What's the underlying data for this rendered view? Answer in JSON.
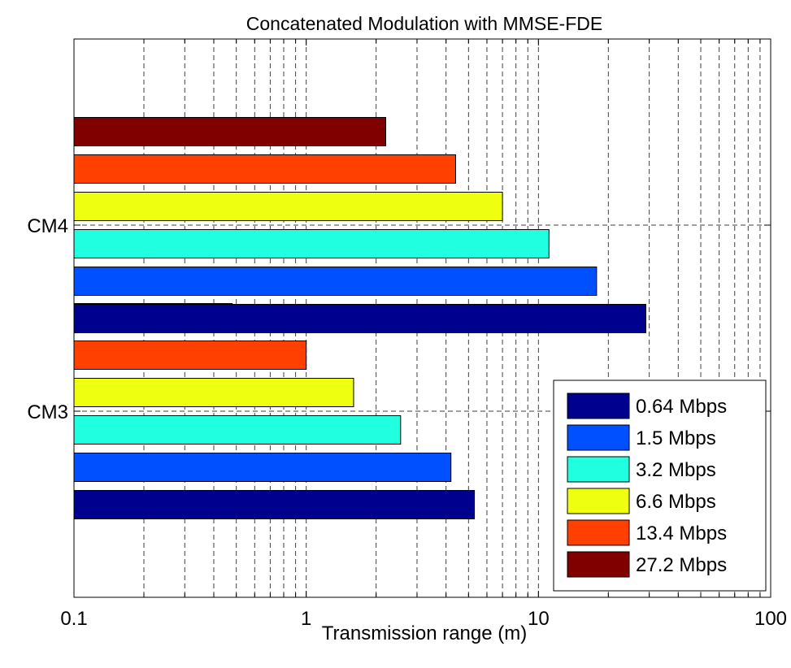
{
  "chart_data": {
    "type": "bar",
    "orientation": "horizontal",
    "title": "Concatenated Modulation with MMSE-FDE",
    "xlabel": "Transmission range (m)",
    "ylabel": "",
    "xscale": "log",
    "xlim": [
      0.1,
      100
    ],
    "xticks": [
      "0.1",
      "1",
      "10",
      "100"
    ],
    "grid": true,
    "legend_position": "bottom-right",
    "categories": [
      "CM3",
      "CM4"
    ],
    "series": [
      {
        "name": "0.64 Mbps",
        "color": "#00008f",
        "values": [
          5.3,
          29
        ]
      },
      {
        "name": "1.5 Mbps",
        "color": "#0050ff",
        "values": [
          4.2,
          17.8
        ]
      },
      {
        "name": "3.2 Mbps",
        "color": "#20ffdf",
        "values": [
          2.55,
          11.1
        ]
      },
      {
        "name": "6.6 Mbps",
        "color": "#efff10",
        "values": [
          1.6,
          7.0
        ]
      },
      {
        "name": "13.4 Mbps",
        "color": "#ff4000",
        "values": [
          1.0,
          4.4
        ]
      },
      {
        "name": "27.2 Mbps",
        "color": "#800000",
        "values": [
          0.48,
          2.2
        ]
      }
    ]
  }
}
